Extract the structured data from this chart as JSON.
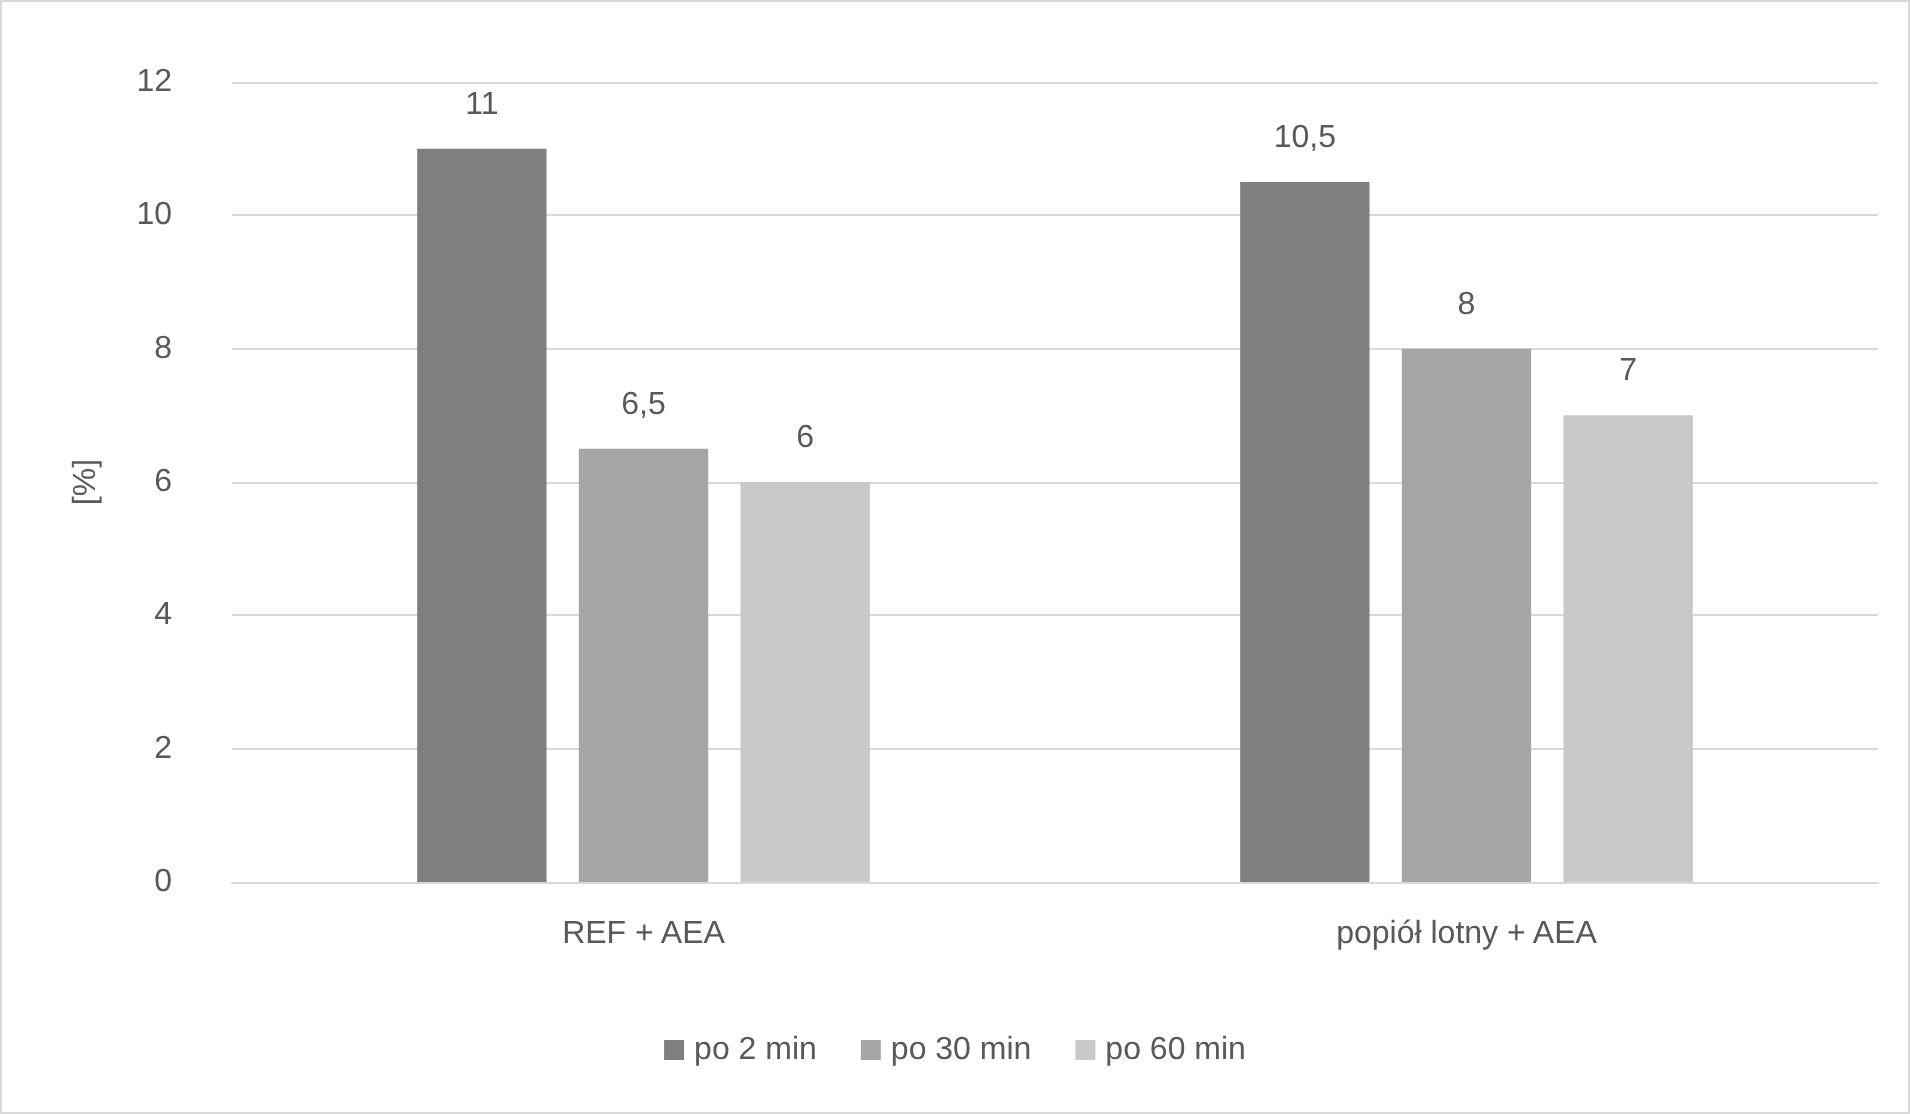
{
  "chart_data": {
    "type": "bar",
    "ylabel": "[%]",
    "categories": [
      "REF + AEA",
      "popiół lotny + AEA"
    ],
    "series": [
      {
        "name": "po 2 min",
        "color": "#7f7f7f",
        "values": [
          11,
          10.5
        ],
        "value_labels": [
          "11",
          "10,5"
        ]
      },
      {
        "name": "po 30 min",
        "color": "#a5a5a5",
        "values": [
          6.5,
          8
        ],
        "value_labels": [
          "6,5",
          "8"
        ]
      },
      {
        "name": "po 60 min",
        "color": "#c9c9c9",
        "values": [
          6,
          7
        ],
        "value_labels": [
          "6",
          "7"
        ]
      }
    ],
    "ylim": [
      0,
      12
    ],
    "yticks": [
      0,
      2,
      4,
      6,
      8,
      10,
      12
    ],
    "grid": "y",
    "legend": "bottom"
  }
}
